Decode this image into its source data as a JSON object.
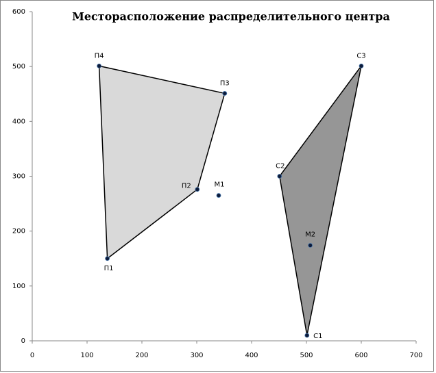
{
  "chart_data": {
    "type": "scatter",
    "title": "Месторасположение распределительного центра",
    "xlim": [
      0,
      700
    ],
    "xticks": [
      0,
      100,
      200,
      300,
      400,
      500,
      600,
      700
    ],
    "ylim": [
      0,
      600
    ],
    "yticks": [
      0,
      100,
      200,
      300,
      400,
      500,
      600
    ],
    "series": [
      {
        "color": "#000000",
        "fill": "#d9d9d9",
        "closed": true,
        "labels": [
          "П1",
          "П2",
          "П3",
          "П4"
        ],
        "x": [
          137,
          301,
          351,
          122
        ],
        "values": [
          150,
          276,
          451,
          501
        ]
      },
      {
        "color": "#000000",
        "fill": "#969696",
        "closed": true,
        "labels": [
          "С1",
          "С2",
          "С3"
        ],
        "x": [
          501,
          451,
          600
        ],
        "values": [
          10,
          300,
          501
        ]
      },
      {
        "color": "#000000",
        "fill": null,
        "closed": false,
        "labels": [
          "М1",
          "М2"
        ],
        "x": [
          340,
          507
        ],
        "values": [
          265,
          174
        ]
      }
    ]
  }
}
